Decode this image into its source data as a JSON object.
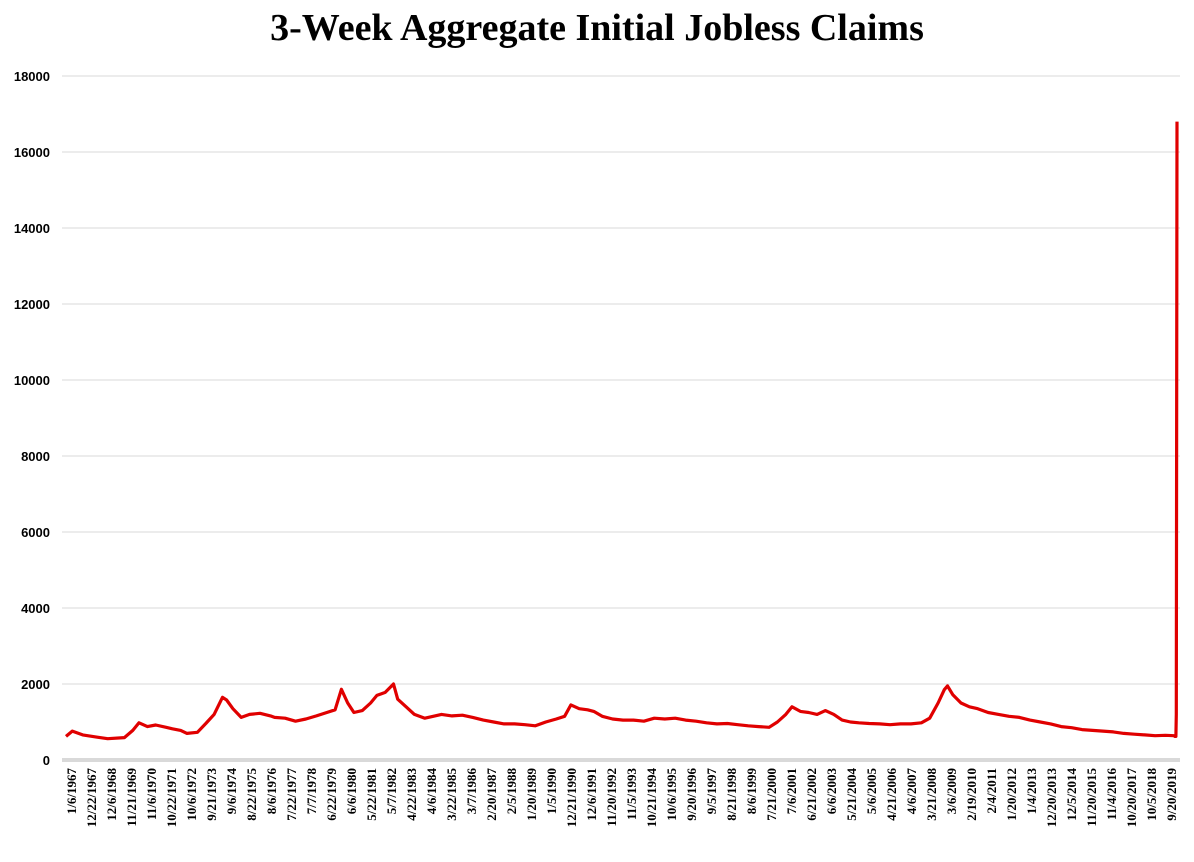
{
  "chart_data": {
    "type": "line",
    "title": "3-Week Aggregate Initial Jobless Claims",
    "xlabel": "",
    "ylabel": "",
    "ylim": [
      0,
      18000
    ],
    "yticks": [
      0,
      2000,
      4000,
      6000,
      8000,
      10000,
      12000,
      14000,
      16000,
      18000
    ],
    "grid": true,
    "legend": "none",
    "line_color": "#e00000",
    "x_tick_labels": [
      "1/6/1967",
      "12/22/1967",
      "12/6/1968",
      "11/21/1969",
      "11/6/1970",
      "10/22/1971",
      "10/6/1972",
      "9/21/1973",
      "9/6/1974",
      "8/22/1975",
      "8/6/1976",
      "7/22/1977",
      "7/7/1978",
      "6/22/1979",
      "6/6/1980",
      "5/22/1981",
      "5/7/1982",
      "4/22/1983",
      "4/6/1984",
      "3/22/1985",
      "3/7/1986",
      "2/20/1987",
      "2/5/1988",
      "1/20/1989",
      "1/5/1990",
      "12/21/1990",
      "12/6/1991",
      "11/20/1992",
      "11/5/1993",
      "10/21/1994",
      "10/6/1995",
      "9/20/1996",
      "9/5/1997",
      "8/21/1998",
      "8/6/1999",
      "7/21/2000",
      "7/6/2001",
      "6/21/2002",
      "6/6/2003",
      "5/21/2004",
      "5/6/2005",
      "4/21/2006",
      "4/6/2007",
      "3/21/2008",
      "3/6/2009",
      "2/19/2010",
      "2/4/2011",
      "1/20/2012",
      "1/4/2013",
      "12/20/2013",
      "12/5/2014",
      "11/20/2015",
      "11/4/2016",
      "10/20/2017",
      "10/5/2018",
      "9/20/2019"
    ],
    "series": [
      {
        "x": [
          1967.0,
          1967.3,
          1967.8,
          1968.5,
          1969.0,
          1969.8,
          1970.2,
          1970.5,
          1970.9,
          1971.3,
          1971.8,
          1972.1,
          1972.5,
          1972.8,
          1973.3,
          1973.7,
          1974.1,
          1974.5,
          1974.7,
          1975.0,
          1975.4,
          1975.8,
          1976.3,
          1976.8,
          1977.0,
          1977.5,
          1978.0,
          1978.5,
          1979.0,
          1979.5,
          1979.9,
          1980.2,
          1980.5,
          1980.8,
          1981.2,
          1981.6,
          1981.9,
          1982.3,
          1982.7,
          1982.9,
          1983.3,
          1983.7,
          1984.2,
          1984.6,
          1985.0,
          1985.5,
          1986.0,
          1986.5,
          1987.0,
          1987.5,
          1988.0,
          1988.5,
          1989.0,
          1989.5,
          1990.0,
          1990.5,
          1990.9,
          1991.2,
          1991.6,
          1992.0,
          1992.3,
          1992.7,
          1993.2,
          1993.7,
          1994.2,
          1994.7,
          1995.2,
          1995.7,
          1996.2,
          1996.7,
          1997.2,
          1997.7,
          1998.2,
          1998.7,
          1999.2,
          1999.7,
          2000.2,
          2000.7,
          2001.1,
          2001.5,
          2001.8,
          2002.2,
          2002.6,
          2003.0,
          2003.4,
          2003.8,
          2004.2,
          2004.6,
          2005.0,
          2005.5,
          2006.0,
          2006.5,
          2007.0,
          2007.5,
          2008.0,
          2008.4,
          2008.8,
          2009.1,
          2009.25,
          2009.5,
          2009.9,
          2010.3,
          2010.7,
          2011.2,
          2011.7,
          2012.2,
          2012.7,
          2013.2,
          2013.7,
          2014.2,
          2014.7,
          2015.2,
          2015.7,
          2016.2,
          2016.7,
          2017.2,
          2017.7,
          2018.2,
          2018.7,
          2019.2,
          2019.7,
          2020.1,
          2020.15,
          2020.2,
          2020.22,
          2020.25
        ],
        "y": [
          620,
          760,
          660,
          600,
          560,
          590,
          780,
          980,
          880,
          920,
          860,
          820,
          780,
          700,
          730,
          960,
          1200,
          1650,
          1580,
          1350,
          1120,
          1200,
          1230,
          1160,
          1120,
          1100,
          1020,
          1080,
          1160,
          1250,
          1320,
          1860,
          1500,
          1250,
          1300,
          1500,
          1700,
          1780,
          2000,
          1600,
          1400,
          1200,
          1100,
          1150,
          1200,
          1160,
          1180,
          1120,
          1050,
          1000,
          950,
          950,
          930,
          900,
          1000,
          1080,
          1150,
          1450,
          1350,
          1320,
          1280,
          1150,
          1080,
          1050,
          1050,
          1020,
          1100,
          1080,
          1100,
          1050,
          1020,
          980,
          950,
          960,
          930,
          900,
          880,
          860,
          1000,
          1200,
          1400,
          1280,
          1250,
          1200,
          1300,
          1200,
          1050,
          1000,
          980,
          960,
          950,
          930,
          950,
          950,
          980,
          1100,
          1500,
          1850,
          1950,
          1720,
          1500,
          1400,
          1350,
          1250,
          1200,
          1150,
          1120,
          1050,
          1000,
          950,
          880,
          850,
          800,
          780,
          760,
          740,
          700,
          680,
          660,
          640,
          650,
          640,
          620,
          620,
          1200,
          16800
        ]
      }
    ]
  }
}
